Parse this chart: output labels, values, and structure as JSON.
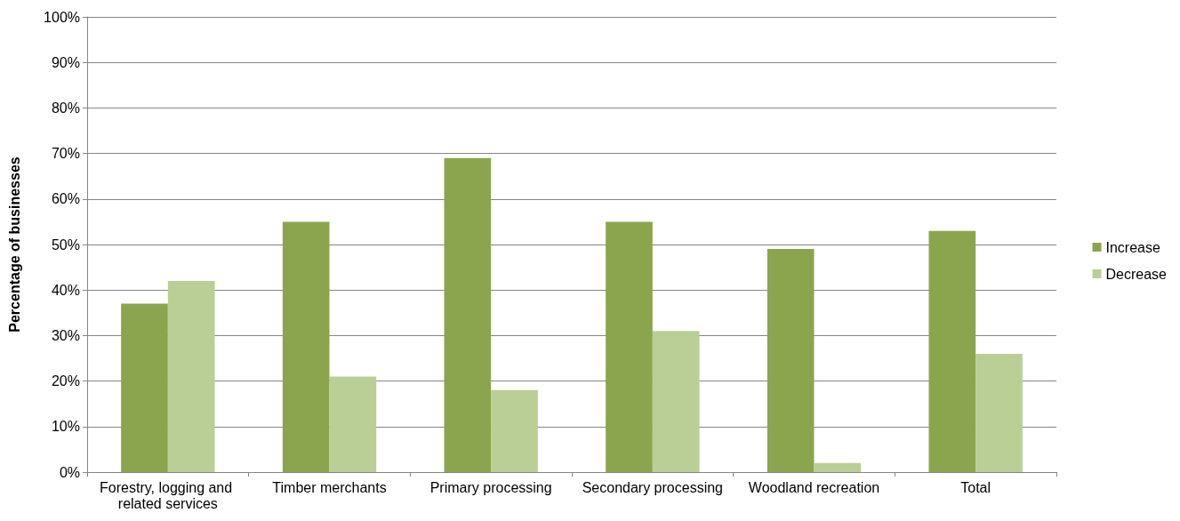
{
  "chart_data": {
    "type": "bar",
    "ylabel": "Percentage of businesses",
    "categories": [
      "Forestry, logging and related services",
      "Timber merchants",
      "Primary processing",
      "Secondary processing",
      "Woodland recreation",
      "Total"
    ],
    "series": [
      {
        "name": "Increase",
        "color": "#8aa54e",
        "values": [
          37,
          55,
          69,
          55,
          49,
          53
        ]
      },
      {
        "name": "Decrease",
        "color": "#b9cf95",
        "values": [
          42,
          21,
          18,
          31,
          2,
          26
        ]
      }
    ],
    "ylim": [
      0,
      100
    ],
    "yticks": [
      {
        "value": 0,
        "label": "0%"
      },
      {
        "value": 10,
        "label": "10%"
      },
      {
        "value": 20,
        "label": "20%"
      },
      {
        "value": 30,
        "label": "30%"
      },
      {
        "value": 40,
        "label": "40%"
      },
      {
        "value": 50,
        "label": "50%"
      },
      {
        "value": 60,
        "label": "60%"
      },
      {
        "value": 70,
        "label": "70%"
      },
      {
        "value": 80,
        "label": "80%"
      },
      {
        "value": 90,
        "label": "90%"
      },
      {
        "value": 100,
        "label": "100%"
      }
    ],
    "grid": "y",
    "legend": "right"
  }
}
